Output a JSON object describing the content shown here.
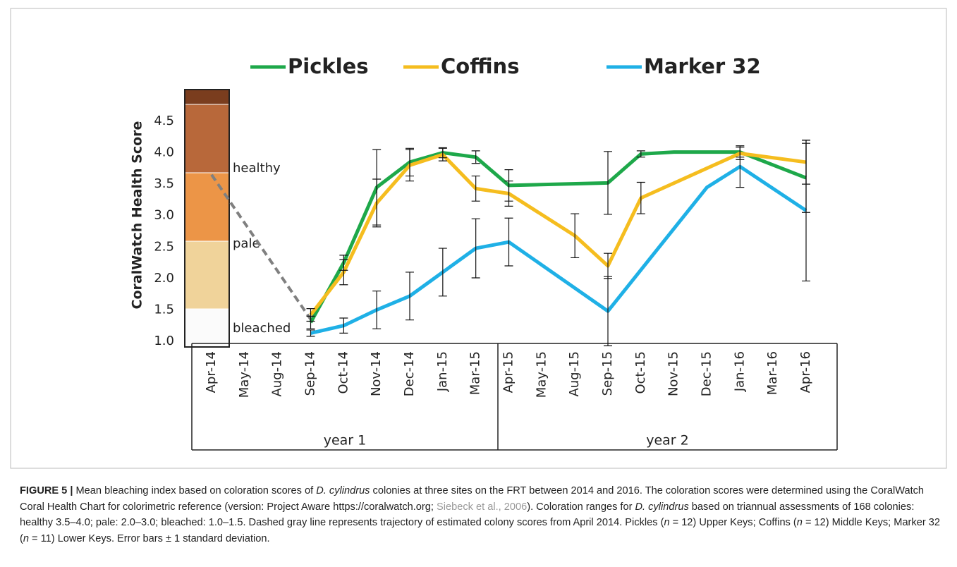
{
  "chart_data": {
    "type": "line",
    "ylabel": "CoralWatch Health Score",
    "ylim": [
      1,
      4.5
    ],
    "yticks": [
      {
        "value": 1,
        "label": "1.0"
      },
      1.5,
      {
        "value": 2,
        "label": "2.0"
      },
      2.5,
      {
        "value": 3,
        "label": "3.0"
      },
      3.5,
      {
        "value": 4,
        "label": "4.0"
      },
      4.5
    ],
    "categories": [
      "Apr-14",
      "May-14",
      "Aug-14",
      "Sep-14",
      "Oct-14",
      "Nov-14",
      "Dec-14",
      "Jan-15",
      "Mar-15",
      "Apr-15",
      "May-15",
      "Aug-15",
      "Sep-15",
      "Oct-15",
      "Nov-15",
      "Dec-15",
      "Jan-16",
      "Mar-16",
      "Apr-16"
    ],
    "groups": [
      "year 1",
      "year 2"
    ],
    "bands": [
      "healthy",
      "pale",
      "bleached"
    ],
    "series": [
      {
        "name": "Pickles",
        "color": "#1ea84a",
        "x": [
          "Sep-14",
          "Oct-14",
          "Nov-14",
          "Dec-14",
          "Jan-15",
          "Mar-15",
          "Apr-15",
          "Sep-15",
          "Oct-15",
          "Nov-15",
          "Dec-15",
          "Jan-16",
          "Apr-16"
        ],
        "values": [
          1.3,
          2.25,
          3.45,
          3.85,
          4.0,
          3.93,
          3.48,
          3.52,
          3.98,
          4.01,
          4.01,
          4.01,
          3.6
        ],
        "errors": [
          0.1,
          0.12,
          0.6,
          0.22,
          0.08,
          0.1,
          0.25,
          0.5,
          0.05,
          null,
          null,
          0.08,
          0.55
        ]
      },
      {
        "name": "Coffins",
        "color": "#f5bd1f",
        "x": [
          "Sep-14",
          "Oct-14",
          "Nov-14",
          "Dec-14",
          "Jan-15",
          "Mar-15",
          "Apr-15",
          "Aug-15",
          "Sep-15",
          "Oct-15",
          "Jan-16",
          "Apr-16"
        ],
        "values": [
          1.42,
          2.1,
          3.2,
          3.8,
          3.97,
          3.43,
          3.35,
          2.68,
          2.2,
          3.28,
          3.99,
          3.85
        ],
        "errors": [
          0.1,
          0.2,
          0.38,
          0.25,
          0.1,
          0.2,
          0.2,
          0.35,
          0.2,
          0.25,
          0.1,
          0.35
        ]
      },
      {
        "name": "Marker 32",
        "color": "#1fb0e6",
        "x": [
          "Sep-14",
          "Oct-14",
          "Nov-14",
          "Dec-14",
          "Jan-15",
          "Mar-15",
          "Apr-15",
          "Sep-15",
          "Dec-15",
          "Jan-16",
          "Apr-16"
        ],
        "values": [
          1.13,
          1.25,
          1.5,
          1.72,
          2.1,
          2.48,
          2.58,
          1.48,
          3.45,
          3.78,
          3.08
        ],
        "errors": [
          0.05,
          0.12,
          0.3,
          0.38,
          0.38,
          0.47,
          0.38,
          0.55,
          null,
          0.33,
          1.12
        ]
      }
    ],
    "trajectory": {
      "color": "#808080",
      "x": [
        "Apr-14",
        "Sep-14"
      ],
      "values": [
        3.65,
        1.35
      ]
    }
  },
  "caption": [
    {
      "text": "FIGURE 5 |",
      "style": "b"
    },
    {
      "text": " Mean bleaching index based on coloration scores of "
    },
    {
      "text": "D. cylindrus",
      "style": "i"
    },
    {
      "text": " colonies at three sites on the FRT between 2014 and 2016. The coloration scores were determined using the CoralWatch Coral Health Chart for colorimetric reference (version: Project Aware https://coralwatch.org; "
    },
    {
      "text": "Siebeck et al., 2006",
      "style": "l"
    },
    {
      "text": "). Coloration ranges for "
    },
    {
      "text": "D. cylindrus",
      "style": "i"
    },
    {
      "text": " based on triannual assessments of 168 colonies: healthy 3.5–4.0; pale: 2.0–3.0; bleached: 1.0–1.5. Dashed gray line represents trajectory of estimated colony scores from April 2014. Pickles ("
    },
    {
      "text": "n",
      "style": "i"
    },
    {
      "text": " = 12) Upper Keys; Coffins ("
    },
    {
      "text": "n",
      "style": "i"
    },
    {
      "text": " = 12) Middle Keys; Marker 32 ("
    },
    {
      "text": "n",
      "style": "i"
    },
    {
      "text": " = 11) Lower Keys. Error bars ± 1 standard deviation."
    }
  ]
}
